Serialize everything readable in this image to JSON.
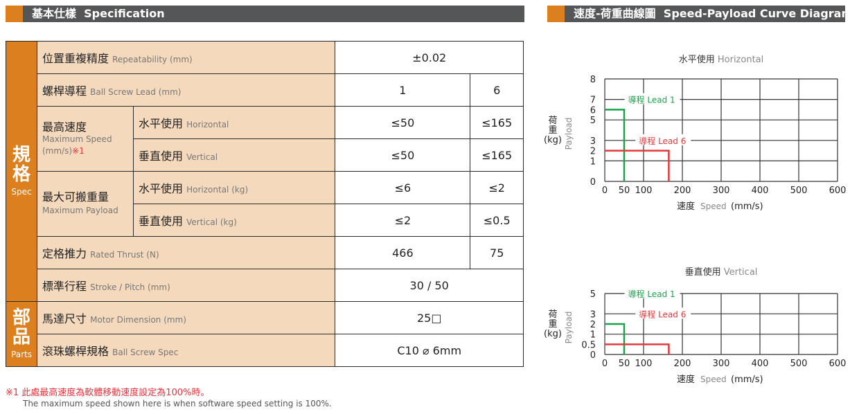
{
  "spec_header": {
    "title_zh": "基本仕樣",
    "title_en": "Specification"
  },
  "chart_header": {
    "title_zh": "速度-荷重曲線圖",
    "title_en": "Speed-Payload Curve Diagram"
  },
  "categories": {
    "spec_zh": "規格",
    "spec_en": "Spec",
    "parts_zh": "部品",
    "parts_en": "Parts"
  },
  "rows": {
    "repeatability": {
      "zh": "位置重複精度",
      "en": "Repeatability (mm)",
      "value": "±0.02"
    },
    "lead": {
      "zh": "螺桿導程",
      "en": "Ball Screw Lead (mm)",
      "v1": "1",
      "v2": "6"
    },
    "max_speed": {
      "zh": "最高速度",
      "en": "Maximum Speed",
      "unit": "(mm/s)",
      "note": "※1",
      "horizontal": {
        "zh": "水平使用",
        "en": "Horizontal",
        "v1": "≤50",
        "v2": "≤165"
      },
      "vertical": {
        "zh": "垂直使用",
        "en": "Vertical",
        "v1": "≤50",
        "v2": "≤165"
      }
    },
    "max_payload": {
      "zh": "最大可搬重量",
      "en": "Maximum Payload",
      "horizontal": {
        "zh": "水平使用",
        "en": "Horizontal (kg)",
        "v1": "≤6",
        "v2": "≤2"
      },
      "vertical": {
        "zh": "垂直使用",
        "en": "Vertical (kg)",
        "v1": "≤2",
        "v2": "≤0.5"
      }
    },
    "thrust": {
      "zh": "定格推力",
      "en": "Rated Thrust (N)",
      "v1": "466",
      "v2": "75"
    },
    "stroke": {
      "zh": "標準行程",
      "en": "Stroke / Pitch (mm)",
      "value": "30 / 50"
    },
    "motor": {
      "zh": "馬達尺寸",
      "en": "Motor Dimension (mm)",
      "value": "25□"
    },
    "screw": {
      "zh": "滾珠螺桿規格",
      "en": "Ball Screw Spec",
      "value": "C10 ⌀ 6mm"
    }
  },
  "footnote": {
    "zh": "※1 此處最高速度為軟體移動速度設定為100%時。",
    "en": "The maximum speed shown here is when software speed setting is 100%."
  },
  "colors": {
    "orange": "#dc7f1f",
    "lead1": "#1aa34a",
    "lead6": "#e23a3a"
  },
  "chart_data": [
    {
      "type": "line",
      "title_zh": "水平使用",
      "title_en": "Horizontal",
      "ylabel_zh": "荷重",
      "ylabel_unit": "(kg)",
      "ylabel_en": "Payload",
      "xlabel_zh": "速度",
      "xlabel_en": "Speed",
      "xlabel_unit": "(mm/s)",
      "xticks": [
        "0",
        "50",
        "100",
        "200",
        "300",
        "400",
        "500",
        "600"
      ],
      "xlim": [
        0,
        600
      ],
      "yticks": [
        "8",
        "7",
        "6",
        "5",
        "3",
        "2",
        "1",
        "0"
      ],
      "ylim": [
        0,
        8
      ],
      "grid": true,
      "series": [
        {
          "name": "導程 Lead 1",
          "color": "#1aa34a",
          "x": [
            0,
            50,
            50
          ],
          "y": [
            6,
            6,
            0
          ]
        },
        {
          "name": "導程 Lead 6",
          "color": "#e23a3a",
          "x": [
            0,
            165,
            165
          ],
          "y": [
            2,
            2,
            0
          ]
        }
      ]
    },
    {
      "type": "line",
      "title_zh": "垂直使用",
      "title_en": "Vertical",
      "ylabel_zh": "荷重",
      "ylabel_unit": "(kg)",
      "ylabel_en": "Payload",
      "xlabel_zh": "速度",
      "xlabel_en": "Speed",
      "xlabel_unit": "(mm/s)",
      "xticks": [
        "0",
        "50",
        "100",
        "200",
        "300",
        "400",
        "500",
        "600"
      ],
      "xlim": [
        0,
        600
      ],
      "yticks": [
        "5",
        "3",
        "2",
        "1",
        "0.5",
        "0"
      ],
      "ylim": [
        0,
        5
      ],
      "grid": true,
      "series": [
        {
          "name": "導程 Lead 1",
          "color": "#1aa34a",
          "x": [
            0,
            50,
            50
          ],
          "y": [
            2,
            2,
            0
          ]
        },
        {
          "name": "導程 Lead 6",
          "color": "#e23a3a",
          "x": [
            0,
            165,
            165
          ],
          "y": [
            0.5,
            0.5,
            0
          ]
        }
      ]
    }
  ]
}
